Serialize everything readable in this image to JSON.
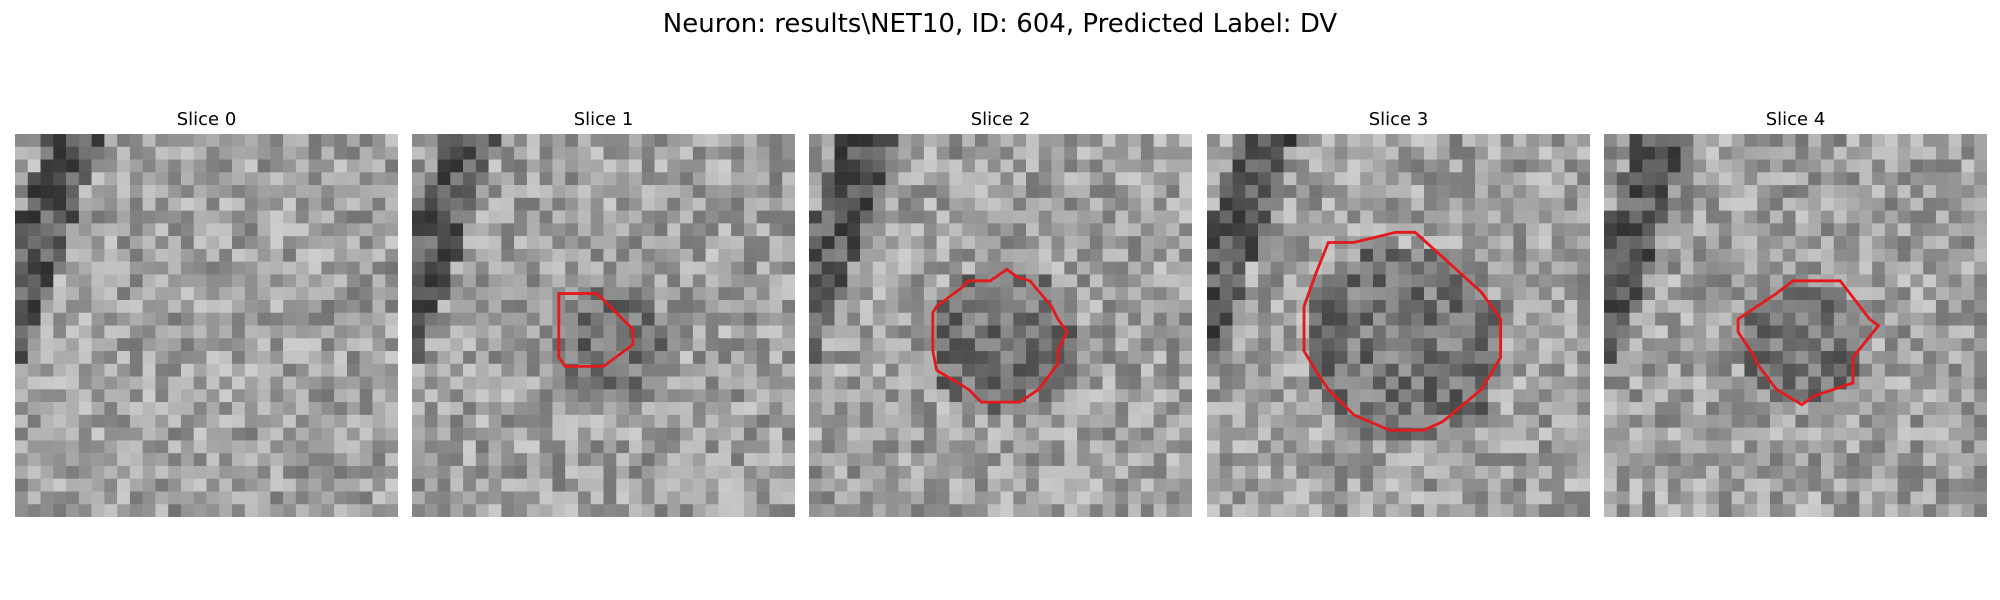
{
  "figure": {
    "title": "Neuron: results\\NET10, ID: 604, Predicted Label: DV"
  },
  "panels": [
    {
      "label": "Slice 0",
      "contour": false
    },
    {
      "label": "Slice 1",
      "contour": true
    },
    {
      "label": "Slice 2",
      "contour": true
    },
    {
      "label": "Slice 3",
      "contour": true
    },
    {
      "label": "Slice 4",
      "contour": true
    }
  ],
  "colors": {
    "contour": "#e31a1c",
    "colormap": "grayscale"
  }
}
